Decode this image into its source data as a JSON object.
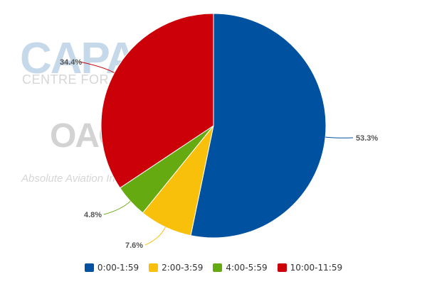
{
  "watermark": {
    "capa": "CAPA",
    "capa_sub": "CENTRE FOR AVIATION",
    "oag": "OAG",
    "oag_sub": "Absolute Aviation Intelligence"
  },
  "chart_data": {
    "type": "pie",
    "start_angle_deg": 0,
    "direction": "clockwise",
    "slices": [
      {
        "label": "0:00-1:59",
        "value": 53.3,
        "display": "53.3%",
        "color": "#0052a0"
      },
      {
        "label": "2:00-3:59",
        "value": 7.6,
        "display": "7.6%",
        "color": "#f8c00a"
      },
      {
        "label": "4:00-5:59",
        "value": 4.8,
        "display": "4.8%",
        "color": "#66aa12"
      },
      {
        "label": "10:00-11:59",
        "value": 34.4,
        "display": "34.4%",
        "color": "#cc0009"
      }
    ],
    "legend_position": "bottom"
  }
}
